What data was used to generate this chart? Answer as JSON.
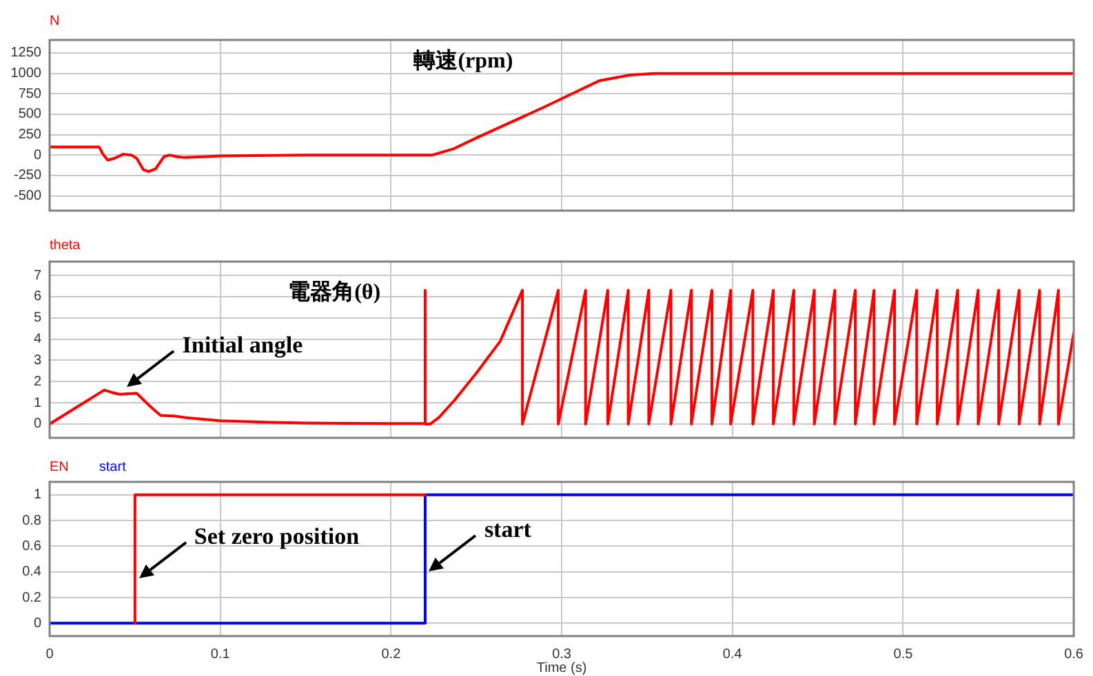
{
  "chart_data": [
    {
      "type": "line",
      "title": "轉速(rpm)",
      "legend": "top left",
      "grid": true,
      "marker": "none",
      "tick_labels": "y",
      "xlim": [
        0,
        0.6
      ],
      "xticks": [
        0,
        0.1,
        0.2,
        0.3,
        0.4,
        0.5,
        0.6
      ],
      "ylim": [
        -680,
        1410
      ],
      "yticks": [
        -500,
        -250,
        0,
        250,
        500,
        750,
        1000,
        1250
      ],
      "series": [
        {
          "name": "N",
          "color": "#ff0000",
          "x": [
            0,
            0.029,
            0.031,
            0.034,
            0.038,
            0.043,
            0.048,
            0.051,
            0.055,
            0.058,
            0.062,
            0.067,
            0.07,
            0.075,
            0.079,
            0.09,
            0.1,
            0.15,
            0.2,
            0.224,
            0.237,
            0.25,
            0.29,
            0.31,
            0.322,
            0.34,
            0.354,
            0.6
          ],
          "values": [
            100,
            100,
            20,
            -60,
            -40,
            10,
            0,
            -40,
            -180,
            -200,
            -170,
            -20,
            0,
            -20,
            -30,
            -20,
            -10,
            0,
            0,
            0,
            80,
            210,
            590,
            790,
            910,
            980,
            1000,
            1000
          ]
        }
      ]
    },
    {
      "type": "line",
      "title": "電器角(θ)",
      "legend": "top left",
      "grid": true,
      "marker": "none",
      "tick_labels": "y",
      "xlim": [
        0,
        0.6
      ],
      "xticks": [
        0,
        0.1,
        0.2,
        0.3,
        0.4,
        0.5,
        0.6
      ],
      "ylim": [
        -0.65,
        7.65
      ],
      "yticks": [
        0,
        1,
        2,
        3,
        4,
        5,
        6,
        7
      ],
      "annotations": [
        {
          "text": "Initial angle",
          "x": 0.043,
          "y": 1.4
        }
      ],
      "series": [
        {
          "name": "theta",
          "color": "#ff0000",
          "x": [
            0,
            0.032,
            0.036,
            0.041,
            0.051,
            0.058,
            0.065,
            0.073,
            0.08,
            0.1,
            0.13,
            0.15,
            0.2,
            0.22,
            0.22,
            0.22,
            0.223,
            0.228,
            0.237,
            0.25,
            0.264,
            0.277,
            0.277,
            0.298,
            0.298,
            0.314,
            0.314,
            0.327,
            0.327,
            0.339,
            0.339,
            0.351,
            0.351,
            0.364,
            0.364,
            0.376,
            0.376,
            0.388,
            0.388,
            0.399,
            0.399,
            0.412,
            0.412,
            0.424,
            0.424,
            0.436,
            0.436,
            0.448,
            0.448,
            0.46,
            0.46,
            0.472,
            0.472,
            0.483,
            0.483,
            0.495,
            0.495,
            0.508,
            0.508,
            0.52,
            0.52,
            0.532,
            0.532,
            0.544,
            0.544,
            0.556,
            0.556,
            0.568,
            0.568,
            0.58,
            0.58,
            0.591,
            0.591,
            0.6
          ],
          "values": [
            0,
            1.6,
            1.5,
            1.4,
            1.45,
            0.9,
            0.4,
            0.38,
            0.3,
            0.15,
            0.08,
            0.05,
            0.02,
            0.02,
            6.3,
            0,
            0,
            0.3,
            1.1,
            2.4,
            3.9,
            6.3,
            0,
            6.3,
            0,
            6.3,
            0,
            6.3,
            0,
            6.3,
            0,
            6.3,
            0,
            6.3,
            0,
            6.3,
            0,
            6.3,
            0,
            6.3,
            0,
            6.3,
            0,
            6.3,
            0,
            6.3,
            0,
            6.3,
            0,
            6.3,
            0,
            6.3,
            0,
            6.3,
            0,
            6.3,
            0,
            6.3,
            0,
            6.3,
            0,
            6.3,
            0,
            6.3,
            0,
            6.3,
            0,
            6.3,
            0,
            6.3,
            0,
            6.3,
            0,
            4.3
          ]
        }
      ]
    },
    {
      "type": "step",
      "legend": "top left",
      "grid": true,
      "marker": "none",
      "xlabel": "Time (s)",
      "xlim": [
        0,
        0.6
      ],
      "xticks": [
        0,
        0.1,
        0.2,
        0.3,
        0.4,
        0.5,
        0.6
      ],
      "ylim": [
        -0.1,
        1.1
      ],
      "yticks": [
        0,
        0.2,
        0.4,
        0.6,
        0.8,
        1
      ],
      "annotations": [
        {
          "text": "Set zero position",
          "x": 0.05,
          "y": 0.3
        },
        {
          "text": "start",
          "x": 0.22,
          "y": 0.35
        }
      ],
      "series": [
        {
          "name": "EN",
          "color": "#ff0000",
          "x": [
            0.05,
            0.05,
            0.22
          ],
          "values": [
            0,
            1,
            1
          ]
        },
        {
          "name": "start",
          "color": "#0000ff",
          "x": [
            0,
            0.22,
            0.6
          ],
          "values": [
            0,
            1,
            1
          ]
        }
      ]
    }
  ]
}
